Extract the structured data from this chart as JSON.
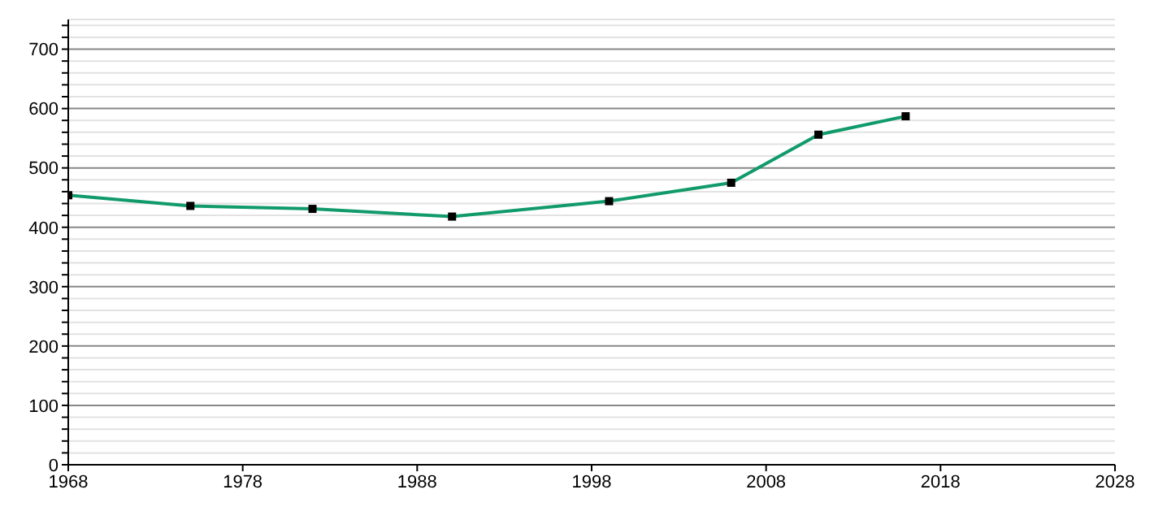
{
  "chart_data": {
    "type": "line",
    "x": [
      1968,
      1975,
      1982,
      1990,
      1999,
      2006,
      2011,
      2016
    ],
    "series": [
      {
        "color": "#119a6a",
        "values": [
          454,
          436,
          431,
          418,
          444,
          475,
          556,
          587
        ]
      }
    ],
    "xlim": [
      1968,
      2028
    ],
    "xticks": [
      1968,
      1978,
      1988,
      1998,
      2008,
      2018,
      2028
    ],
    "ylim": [
      0,
      750
    ],
    "yticks": [
      0,
      {
        "value": 20,
        "label": null
      },
      {
        "value": 40,
        "label": null
      },
      {
        "value": 60,
        "label": null
      },
      {
        "value": 80,
        "label": null
      },
      100,
      {
        "value": 120,
        "label": null
      },
      {
        "value": 140,
        "label": null
      },
      {
        "value": 160,
        "label": null
      },
      {
        "value": 180,
        "label": null
      },
      200,
      {
        "value": 220,
        "label": null
      },
      {
        "value": 240,
        "label": null
      },
      {
        "value": 260,
        "label": null
      },
      {
        "value": 280,
        "label": null
      },
      300,
      {
        "value": 320,
        "label": null
      },
      {
        "value": 340,
        "label": null
      },
      {
        "value": 360,
        "label": null
      },
      {
        "value": 380,
        "label": null
      },
      400,
      {
        "value": 420,
        "label": null
      },
      {
        "value": 440,
        "label": null
      },
      {
        "value": 460,
        "label": null
      },
      {
        "value": 480,
        "label": null
      },
      500,
      {
        "value": 520,
        "label": null
      },
      {
        "value": 540,
        "label": null
      },
      {
        "value": 560,
        "label": null
      },
      {
        "value": 580,
        "label": null
      },
      600,
      {
        "value": 620,
        "label": null
      },
      {
        "value": 640,
        "label": null
      },
      {
        "value": 660,
        "label": null
      },
      {
        "value": 680,
        "label": null
      },
      700,
      {
        "value": 720,
        "label": null
      },
      {
        "value": 740,
        "label": null
      }
    ],
    "grid": "y",
    "marker": "square",
    "line_style": "solid"
  }
}
